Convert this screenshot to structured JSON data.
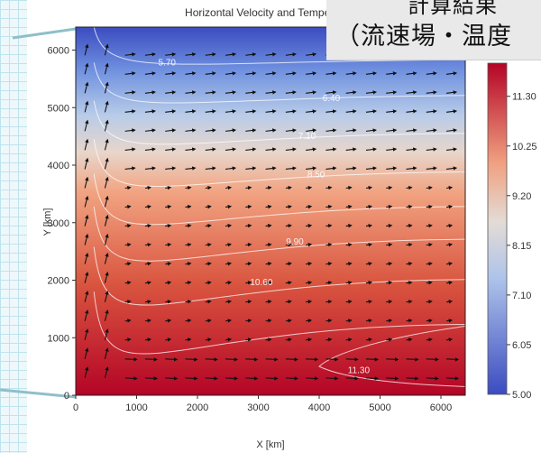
{
  "callout": {
    "line1": "計算結果",
    "line2": "（流速場・温度"
  },
  "chart_data": {
    "type": "heatmap",
    "title": "Horizontal Velocity and Temperatu",
    "xlabel": "X [km]",
    "ylabel": "Y [km]",
    "xlim": [
      0,
      6400
    ],
    "ylim": [
      0,
      6400
    ],
    "x_ticks": [
      0,
      1000,
      2000,
      3000,
      4000,
      5000,
      6000
    ],
    "y_ticks": [
      0,
      1000,
      2000,
      3000,
      4000,
      5000,
      6000
    ],
    "colorbar": {
      "range": [
        5.0,
        12.0
      ],
      "ticks": [
        "5.00",
        "6.05",
        "7.10",
        "8.15",
        "9.20",
        "10.25",
        "11.30"
      ],
      "colormap": [
        "#3b4cc0",
        "#dddddd",
        "#b40426"
      ]
    },
    "contour_labels": [
      {
        "text": "5.70",
        "x": 1500,
        "y": 5800
      },
      {
        "text": "6.40",
        "x": 4200,
        "y": 5180
      },
      {
        "text": "7.10",
        "x": 3800,
        "y": 4520
      },
      {
        "text": "8.50",
        "x": 3950,
        "y": 3850
      },
      {
        "text": "9.90",
        "x": 3600,
        "y": 2680
      },
      {
        "text": "10.60",
        "x": 3050,
        "y": 1980
      },
      {
        "text": "11.30",
        "x": 4650,
        "y": 450
      }
    ],
    "grid": false,
    "overlay": "horizontal velocity vectors (quiver)"
  }
}
